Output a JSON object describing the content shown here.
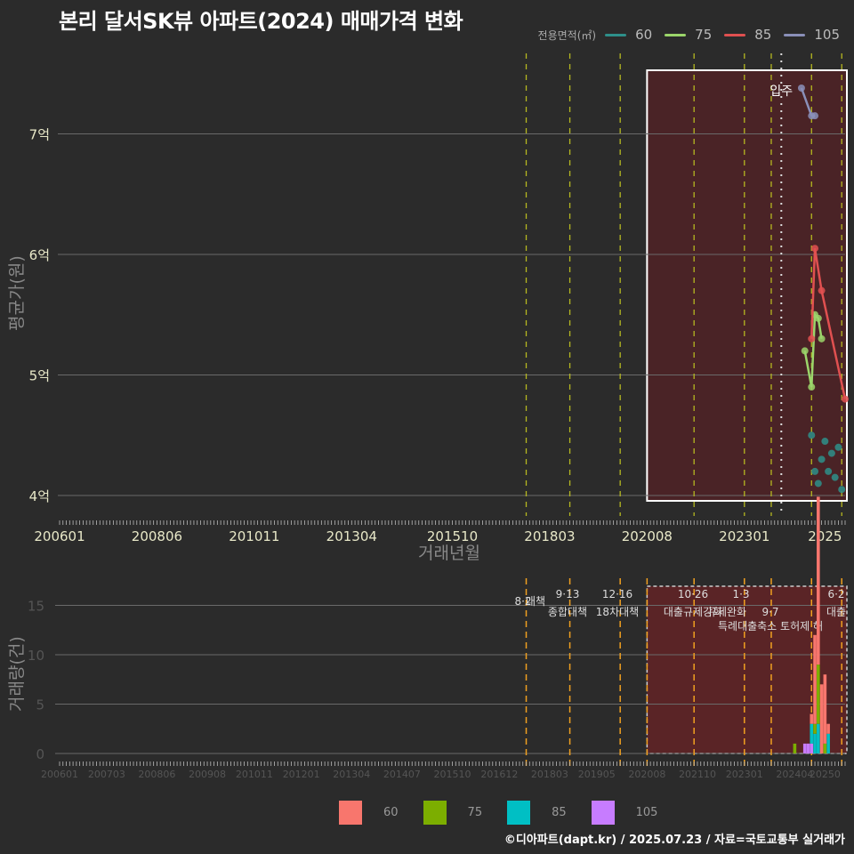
{
  "title": "본리 달서SK뷰 아파트(2024) 매매가격 변화",
  "credit": "©디아파트(dapt.kr) / 2025.07.23 / 자료=국토교통부 실거래가",
  "colors": {
    "background": "#2b2b2b",
    "grid": "#6a6a6a",
    "highlight_fill": "#4a2326",
    "policy_line_top": "#b5b820",
    "policy_line_bottom": "#f0a020",
    "line_60": "#2e8f8a",
    "line_75": "#9bd56a",
    "line_85": "#e05050",
    "line_105": "#8a8fb8",
    "bar_60": "#f8766d",
    "bar_75": "#7cae00",
    "bar_85": "#00bfc4",
    "bar_105": "#c77cff"
  },
  "top_legend": {
    "title": "전용면적(㎡)",
    "items": [
      {
        "label": "60",
        "color": "#2e8f8a"
      },
      {
        "label": "75",
        "color": "#9bd56a"
      },
      {
        "label": "85",
        "color": "#e05050"
      },
      {
        "label": "105",
        "color": "#8a8fb8"
      }
    ]
  },
  "bottom_legend": {
    "items": [
      {
        "label": "60",
        "color": "#f8766d"
      },
      {
        "label": "75",
        "color": "#7cae00"
      },
      {
        "label": "85",
        "color": "#00bfc4"
      },
      {
        "label": "105",
        "color": "#c77cff"
      }
    ]
  },
  "chart_data": [
    {
      "type": "line",
      "title": "본리 달서SK뷰 아파트(2024) 매매가격 변화",
      "xlabel": "거래년월",
      "ylabel": "평균가(원)",
      "x_tick_labels": [
        "200601",
        "200806",
        "201011",
        "201304",
        "201510",
        "201803",
        "202008",
        "202301",
        "2025"
      ],
      "y_tick_labels": [
        "4억",
        "5억",
        "6억",
        "7억"
      ],
      "ylim": [
        3.95,
        7.5
      ],
      "y_unit": "억",
      "grid": true,
      "legend_position": "top-right",
      "annotations": [
        {
          "label": "입주",
          "x": "202312"
        }
      ],
      "highlight_range": [
        "202008",
        "202507"
      ],
      "policy_lines": [
        "201708",
        "201809",
        "201912",
        "202110",
        "202301",
        "202309",
        "202409",
        "202506"
      ],
      "series": [
        {
          "name": "60",
          "points": [
            [
              "202409",
              4.5
            ],
            [
              "202410",
              4.2
            ],
            [
              "202411",
              4.1
            ],
            [
              "202412",
              4.3
            ],
            [
              "202501",
              4.45
            ],
            [
              "202502",
              4.2
            ],
            [
              "202503",
              4.35
            ],
            [
              "202504",
              4.15
            ],
            [
              "202505",
              4.4
            ],
            [
              "202506",
              4.05
            ]
          ]
        },
        {
          "name": "75",
          "points": [
            [
              "202407",
              5.2
            ],
            [
              "202409",
              4.9
            ],
            [
              "202410",
              5.5
            ],
            [
              "202411",
              5.47
            ],
            [
              "202412",
              5.3
            ]
          ]
        },
        {
          "name": "85",
          "points": [
            [
              "202409",
              5.3
            ],
            [
              "202410",
              6.05
            ],
            [
              "202412",
              5.7
            ],
            [
              "202507",
              4.8
            ]
          ]
        },
        {
          "name": "105",
          "points": [
            [
              "202406",
              7.38
            ],
            [
              "202409",
              7.15
            ],
            [
              "202410",
              7.15
            ]
          ]
        }
      ]
    },
    {
      "type": "bar",
      "xlabel": "",
      "ylabel": "거래량(건)",
      "x_tick_labels": [
        "200601",
        "200703",
        "200806",
        "200908",
        "201011",
        "201201",
        "201304",
        "201407",
        "201510",
        "201612",
        "201803",
        "201905",
        "202008",
        "202110",
        "202301",
        "202404",
        "20250"
      ],
      "y_tick_labels": [
        "0",
        "5",
        "10",
        "15"
      ],
      "ylim": [
        0,
        17
      ],
      "grid": true,
      "legend_position": "bottom",
      "policy_annotations": [
        {
          "date": "8·2",
          "label": "대책"
        },
        {
          "date": "9·13",
          "label": "종합대책"
        },
        {
          "date": "12·16",
          "label": "18차대책"
        },
        {
          "date": "10·26",
          "label": "대출규제강화"
        },
        {
          "date": "1·3",
          "label": "규제완화"
        },
        {
          "date": "9·7",
          "label": "특례대출축소 토허제 해"
        },
        {
          "date": "6·2",
          "label": "대출"
        }
      ],
      "series": [
        {
          "name": "60",
          "values": {
            "202409": 1,
            "202410": 9,
            "202411": 17,
            "202412": 7,
            "202501": 7,
            "202502": 1
          }
        },
        {
          "name": "75",
          "values": {
            "202404": 1,
            "202410": 1,
            "202411": 6,
            "202501": 1
          }
        },
        {
          "name": "85",
          "values": {
            "202409": 2,
            "202410": 2,
            "202411": 3,
            "202502": 2
          }
        },
        {
          "name": "105",
          "values": {
            "202407": 1,
            "202408": 1,
            "202409": 1
          }
        }
      ]
    }
  ]
}
